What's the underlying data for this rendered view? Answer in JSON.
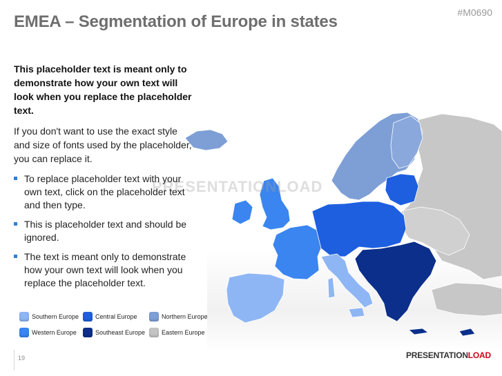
{
  "slide": {
    "title": "EMEA – Segmentation of Europe in states",
    "code": "#M0690",
    "intro_bold": "This placeholder text is meant only to demonstrate how your own text will look when you replace the placeholder text.",
    "intro": "If you don't want to use the exact style and size of fonts used by the placeholder, you can replace it.",
    "bullets": [
      "To replace placeholder text with your own text, click on the placeholder text and then type.",
      "This is placeholder text and should be ignored.",
      "The text is meant only to demonstrate how your own text will look when you replace the placeholder text."
    ],
    "page_number": "19",
    "watermark": "PRESENTATIONLOAD",
    "brand": {
      "part1": "PRESENTATION",
      "part2": "LOAD"
    }
  },
  "legend": [
    {
      "label": "Southern Europe",
      "color": "#8fb6f4"
    },
    {
      "label": "Central Europe",
      "color": "#1e5fe0"
    },
    {
      "label": "Northern Europe",
      "color": "#7e9fd6"
    },
    {
      "label": "Western Europe",
      "color": "#3a85f0"
    },
    {
      "label": "Southeast Europe",
      "color": "#0b2f8a"
    },
    {
      "label": "Eastern Europe",
      "color": "#c4c4c4"
    }
  ]
}
